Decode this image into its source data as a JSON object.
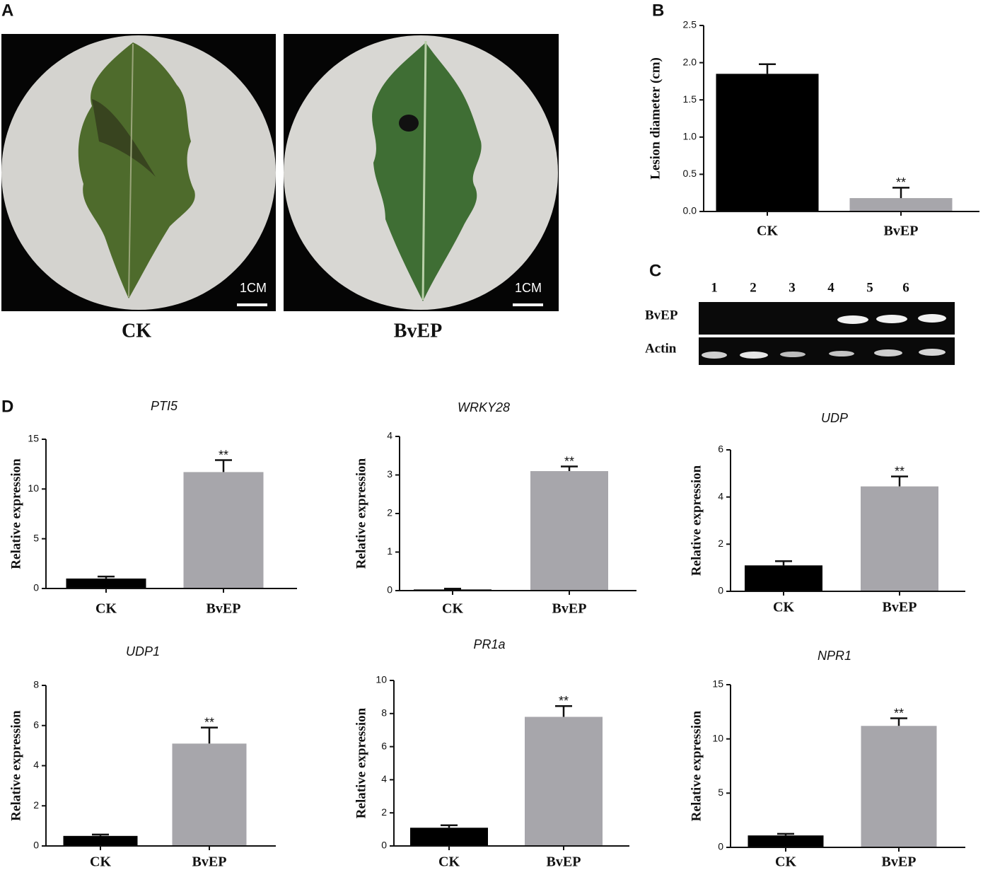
{
  "panel_labels": [
    "A",
    "B",
    "C",
    "D"
  ],
  "photos": [
    {
      "label": "CK",
      "scale": "1CM"
    },
    {
      "label": "BvEP",
      "scale": "1CM"
    }
  ],
  "gel": {
    "lanes": [
      "1",
      "2",
      "3",
      "4",
      "5",
      "6"
    ],
    "rows": [
      "BvEP",
      "Actin"
    ]
  },
  "chart_data": [
    {
      "type": "bar",
      "ylabel": "Lesion diameter (cm)",
      "categories": [
        "CK",
        "BvEP"
      ],
      "values": [
        1.85,
        0.18
      ],
      "errors": [
        0.13,
        0.14
      ],
      "significance": [
        null,
        "**"
      ],
      "colors": [
        "#000000",
        "#a7a6ab"
      ],
      "ylim": [
        0,
        2.5
      ],
      "yticks": [
        {
          "value": 0,
          "label": "0.0"
        },
        {
          "value": 0.5,
          "label": "0.5"
        },
        {
          "value": 1,
          "label": "1.0"
        },
        {
          "value": 1.5,
          "label": "1.5"
        },
        {
          "value": 2,
          "label": "2.0"
        },
        {
          "value": 2.5,
          "label": "2.5"
        }
      ]
    },
    {
      "type": "bar",
      "title": "PTI5",
      "ylabel": "Relative expression",
      "categories": [
        "CK",
        "BvEP"
      ],
      "values": [
        1.0,
        11.7
      ],
      "errors": [
        0.2,
        1.2
      ],
      "significance": [
        null,
        "**"
      ],
      "colors": [
        "#000000",
        "#a7a6ab"
      ],
      "ylim": [
        0,
        15
      ],
      "yticks": [
        0,
        5,
        10,
        15
      ]
    },
    {
      "type": "bar",
      "title": "WRKY28",
      "ylabel": "Relative expression",
      "categories": [
        "CK",
        "BvEP"
      ],
      "values": [
        0.03,
        3.1
      ],
      "errors": [
        0.02,
        0.12
      ],
      "significance": [
        null,
        "**"
      ],
      "colors": [
        "#000000",
        "#a7a6ab"
      ],
      "ylim": [
        0,
        4
      ],
      "yticks": [
        0,
        1,
        2,
        3,
        4
      ]
    },
    {
      "type": "bar",
      "title": "UDP",
      "ylabel": "Relative expression",
      "categories": [
        "CK",
        "BvEP"
      ],
      "values": [
        1.1,
        4.45
      ],
      "errors": [
        0.18,
        0.42
      ],
      "significance": [
        null,
        "**"
      ],
      "colors": [
        "#000000",
        "#a7a6ab"
      ],
      "ylim": [
        0,
        6
      ],
      "yticks": [
        0,
        2,
        4,
        6
      ]
    },
    {
      "type": "bar",
      "title": "UDP1",
      "ylabel": "Relative expression",
      "categories": [
        "CK",
        "BvEP"
      ],
      "values": [
        0.5,
        5.1
      ],
      "errors": [
        0.07,
        0.8
      ],
      "significance": [
        null,
        "**"
      ],
      "colors": [
        "#000000",
        "#a7a6ab"
      ],
      "ylim": [
        0,
        8
      ],
      "yticks": [
        0,
        2,
        4,
        6,
        8
      ]
    },
    {
      "type": "bar",
      "title": "PR1a",
      "ylabel": "Relative expression",
      "categories": [
        "CK",
        "BvEP"
      ],
      "values": [
        1.1,
        7.8
      ],
      "errors": [
        0.15,
        0.65
      ],
      "significance": [
        null,
        "**"
      ],
      "colors": [
        "#000000",
        "#a7a6ab"
      ],
      "ylim": [
        0,
        10
      ],
      "yticks": [
        0,
        2,
        4,
        6,
        8,
        10
      ]
    },
    {
      "type": "bar",
      "title": "NPR1",
      "ylabel": "Relative expression",
      "categories": [
        "CK",
        "BvEP"
      ],
      "values": [
        1.1,
        11.2
      ],
      "errors": [
        0.15,
        0.7
      ],
      "significance": [
        null,
        "**"
      ],
      "colors": [
        "#000000",
        "#a7a6ab"
      ],
      "ylim": [
        0,
        15
      ],
      "yticks": [
        0,
        5,
        10,
        15
      ]
    }
  ]
}
